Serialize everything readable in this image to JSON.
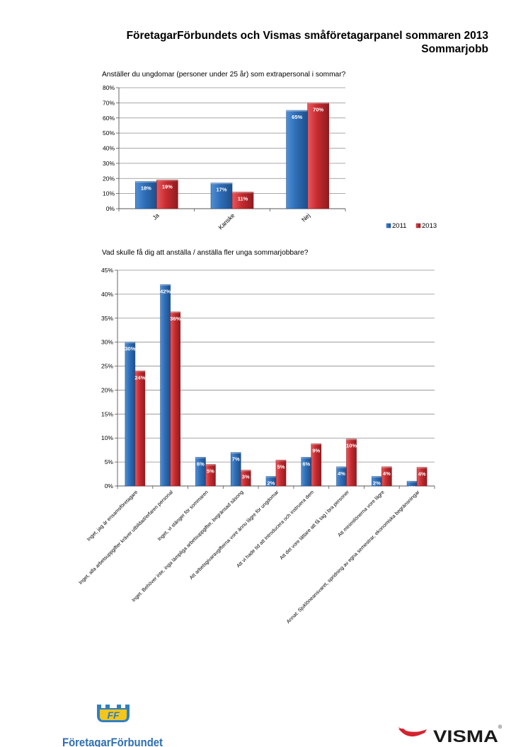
{
  "header": {
    "title": "FöretagarFörbundets och Vismas småföretagarpanel sommaren 2013",
    "subtitle": "Sommarjobb"
  },
  "colors": {
    "s2011": "#2e6db5",
    "s2013": "#c62b30"
  },
  "chart_data": [
    {
      "type": "bar",
      "title": "Anställer du ungdomar (personer under 25 år) som extrapersonal i sommar?",
      "categories": [
        "Ja",
        "Kanske",
        "Nej"
      ],
      "series": [
        {
          "name": "2011",
          "values": [
            18,
            17,
            65
          ],
          "labels": [
            "18%",
            "17%",
            "65%"
          ]
        },
        {
          "name": "2013",
          "values": [
            19,
            11,
            70
          ],
          "labels": [
            "19%",
            "11%",
            "70%"
          ]
        }
      ],
      "ylim": [
        0,
        80
      ],
      "yticks": [
        "0%",
        "10%",
        "20%",
        "30%",
        "40%",
        "50%",
        "60%",
        "70%",
        "80%"
      ],
      "grid": true,
      "legend": "bottom-right"
    },
    {
      "type": "bar",
      "title": "Vad skulle få dig att anställa / anställa fler unga sommarjobbare?",
      "categories": [
        "Inget, jag är ensamsföretagare",
        "Inget, alla arbetsuppgifter kräver utbildad/erfaren personal",
        "Inget, vi stänger för sommaren",
        "Inget. Behöver inte, inga lämpliga arbetsuppgifter, begränsad säsong",
        "Att arbetsgivaravgifterna vore ännu lägre för ungdomar",
        "Att vi hade tid att introducera och instruera dem",
        "Att det vore lättare att få tag i bra personer",
        "Att minimilönerna vore lägre",
        "Annat: Sjuklöneansvaret, spridning av egna semestrar, ekonomiska begränsningar"
      ],
      "series": [
        {
          "name": "2011",
          "values": [
            30,
            42,
            6,
            7,
            2,
            6,
            4,
            2,
            1
          ],
          "labels": [
            "30%",
            "42%",
            "6%",
            "7%",
            "2%",
            "6%",
            "4%",
            "2%",
            "1%"
          ]
        },
        {
          "name": "2013",
          "values": [
            24,
            36.3,
            4.5,
            3.3,
            5.4,
            8.8,
            9.8,
            4,
            3.9
          ],
          "labels": [
            "24%",
            "36%",
            "5%",
            "3%",
            "5%",
            "9%",
            "10%",
            "4%",
            "4%"
          ]
        }
      ],
      "ylim": [
        0,
        45
      ],
      "yticks": [
        "0%",
        "5%",
        "10%",
        "15%",
        "20%",
        "25%",
        "30%",
        "35%",
        "40%",
        "45%"
      ],
      "grid": true
    }
  ],
  "logos": {
    "foretagarforbundet": "FöretagarFörbundet",
    "visma": "VISMA"
  }
}
